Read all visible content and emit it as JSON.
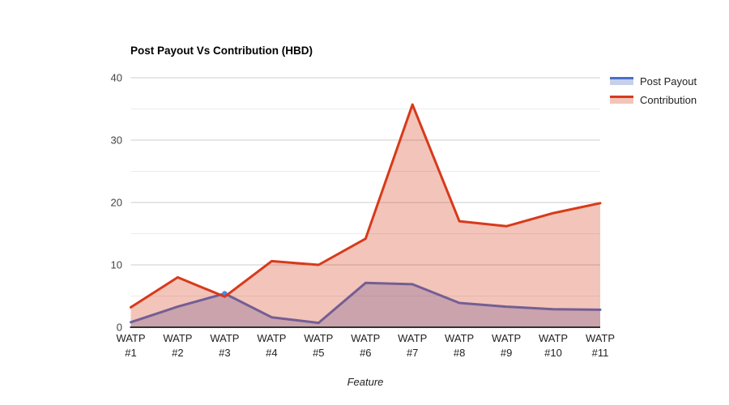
{
  "chart_data": {
    "type": "area",
    "title": "Post Payout Vs Contribution (HBD)",
    "xlabel": "Feature",
    "ylabel": "",
    "categories": [
      "WATP #1",
      "WATP #2",
      "WATP #3",
      "WATP #4",
      "WATP #5",
      "WATP #6",
      "WATP #7",
      "WATP #8",
      "WATP #9",
      "WATP #10",
      "WATP #11"
    ],
    "series": [
      {
        "name": "Post Payout",
        "color": "#4a6ec8",
        "fill_opacity": 0.32,
        "values": [
          0.8,
          3.3,
          5.4,
          1.6,
          0.7,
          7.1,
          6.9,
          3.9,
          3.3,
          2.9,
          2.8
        ]
      },
      {
        "name": "Contribution",
        "color": "#d73a1a",
        "fill_opacity": 0.3,
        "values": [
          3.2,
          8.0,
          4.9,
          10.6,
          10.0,
          14.2,
          35.7,
          17.0,
          16.2,
          18.3,
          19.9
        ]
      }
    ],
    "ylim": [
      0,
      40
    ],
    "y_major_ticks": [
      0,
      10,
      20,
      30,
      40
    ],
    "y_minor_ticks": [
      5,
      15,
      25,
      35
    ],
    "grid": true,
    "legend_position": "right",
    "highlight_point": {
      "series_index": 0,
      "category_index": 2,
      "color": "#4a86e8"
    },
    "colors": {
      "background": "#ffffff",
      "gridline_major": "#cccccc",
      "gridline_minor": "#ebebeb",
      "axis_baseline": "#333333",
      "ytick_text": "#444444",
      "xtick_text": "#222222"
    }
  }
}
